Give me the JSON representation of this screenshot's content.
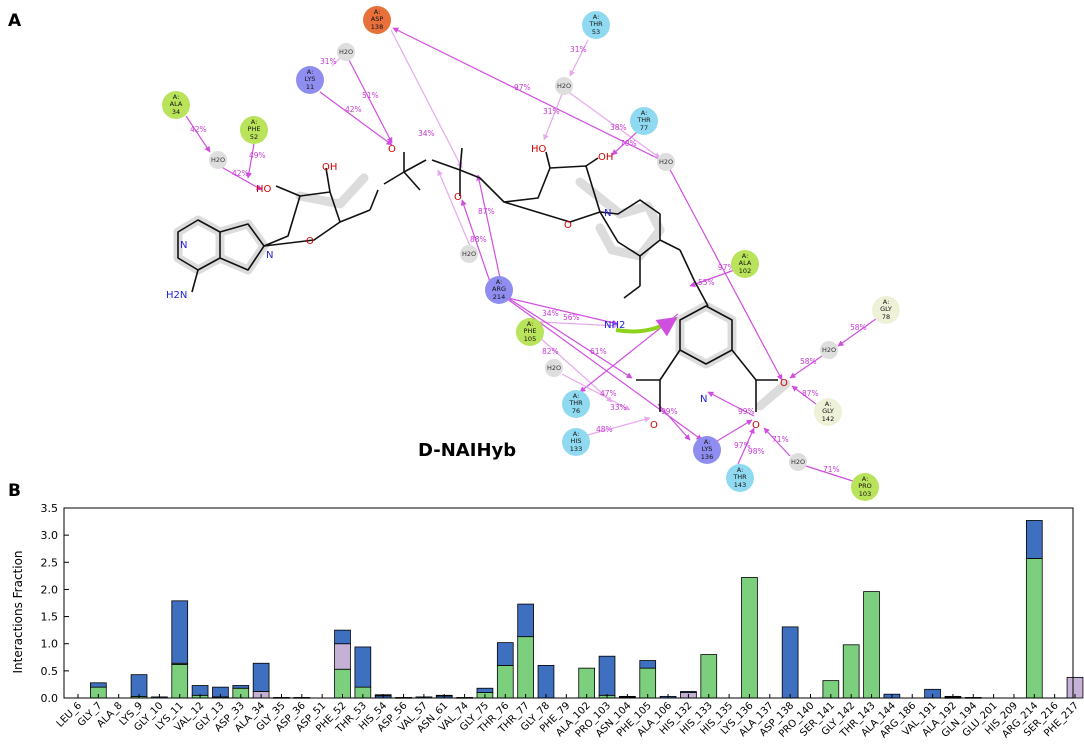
{
  "panel_labels": {
    "a": "A",
    "b": "B"
  },
  "ligand_name": "D-NAIHyb",
  "diagram": {
    "residues": [
      {
        "id": "asp138",
        "chain": "A:",
        "name": "ASP",
        "num": "138",
        "color": "#e8703a"
      },
      {
        "id": "thr53",
        "chain": "A:",
        "name": "THR",
        "num": "53",
        "color": "#8fdaf0"
      },
      {
        "id": "lys11",
        "chain": "A:",
        "name": "LYS",
        "num": "11",
        "color": "#8f8ef0"
      },
      {
        "id": "ala34",
        "chain": "A:",
        "name": "ALA",
        "num": "34",
        "color": "#b9e35a"
      },
      {
        "id": "phe52",
        "chain": "A:",
        "name": "PHE",
        "num": "52",
        "color": "#b9e35a"
      },
      {
        "id": "thr77",
        "chain": "A:",
        "name": "THR",
        "num": "77",
        "color": "#8fdaf0"
      },
      {
        "id": "ala102",
        "chain": "A:",
        "name": "ALA",
        "num": "102",
        "color": "#b9e35a"
      },
      {
        "id": "arg214",
        "chain": "A:",
        "name": "ARG",
        "num": "214",
        "color": "#8f8ef0"
      },
      {
        "id": "gly78",
        "chain": "A:",
        "name": "GLY",
        "num": "78",
        "color": "#eef1d8"
      },
      {
        "id": "phe105",
        "chain": "A:",
        "name": "PHE",
        "num": "105",
        "color": "#b9e35a"
      },
      {
        "id": "thr76",
        "chain": "A:",
        "name": "THR",
        "num": "76",
        "color": "#8fdaf0"
      },
      {
        "id": "gly142",
        "chain": "A:",
        "name": "GLY",
        "num": "142",
        "color": "#eef1d8"
      },
      {
        "id": "his133",
        "chain": "A:",
        "name": "HIS",
        "num": "133",
        "color": "#8fdaf0"
      },
      {
        "id": "lys136",
        "chain": "A:",
        "name": "LYS",
        "num": "136",
        "color": "#8f8ef0"
      },
      {
        "id": "thr143",
        "chain": "A:",
        "name": "THR",
        "num": "143",
        "color": "#8fdaf0"
      },
      {
        "id": "pro103",
        "chain": "A:",
        "name": "PRO",
        "num": "103",
        "color": "#b9e35a"
      }
    ],
    "water_label": "H2O",
    "percentages": [
      "31%",
      "51%",
      "42%",
      "42%",
      "49%",
      "42%",
      "34%",
      "97%",
      "31%",
      "31%",
      "38%",
      "70%",
      "87%",
      "88%",
      "55%",
      "97%",
      "34%",
      "56%",
      "82%",
      "61%",
      "58%",
      "58%",
      "87%",
      "47%",
      "33%",
      "48%",
      "99%",
      "99%",
      "97%",
      "98%",
      "71%",
      "71%"
    ],
    "atom_labels": {
      "oh1": "OH",
      "ho": "HO",
      "o_minus": "O",
      "o_ring": "O",
      "n": "N",
      "nh2": "NH2",
      "h2n": "H2N",
      "oh2": "OH",
      "ho2": "HO"
    }
  },
  "chart_data": {
    "type": "bar",
    "stacked": true,
    "ylabel": "Interactions Fraction",
    "ylim": [
      0,
      3.5
    ],
    "yticks": [
      "0.0",
      "0.5",
      "1.0",
      "1.5",
      "2.0",
      "2.5",
      "3.0",
      "3.5"
    ],
    "grid": false,
    "categories": [
      "LEU_6",
      "GLY_7",
      "ALA_8",
      "LYS_9",
      "GLY_10",
      "LYS_11",
      "VAL_12",
      "GLY_13",
      "ASP_33",
      "ALA_34",
      "GLY_35",
      "ASP_36",
      "ASP_51",
      "PHE_52",
      "THR_53",
      "HIS_54",
      "ASP_56",
      "VAL_57",
      "ASN_61",
      "VAL_74",
      "GLY_75",
      "THR_76",
      "THR_77",
      "GLY_78",
      "PHE_79",
      "ALA_102",
      "PRO_103",
      "ASN_104",
      "PHE_105",
      "ALA_106",
      "HIS_132",
      "HIS_133",
      "HIS_135",
      "LYS_136",
      "ALA_137",
      "ASP_138",
      "PRO_140",
      "SER_141",
      "GLY_142",
      "THR_143",
      "ALA_144",
      "ARG_186",
      "VAL_191",
      "ALA_192",
      "GLN_194",
      "GLU_201",
      "HIS_209",
      "ARG_214",
      "SER_216",
      "PHE_217"
    ],
    "series": [
      {
        "name": "",
        "color": "#7ccf7c",
        "values": [
          0,
          0.2,
          0,
          0.03,
          0,
          0.62,
          0.05,
          0.02,
          0.18,
          0,
          0,
          0,
          0,
          0.53,
          0.2,
          0,
          0,
          0,
          0,
          0,
          0.1,
          0.6,
          1.13,
          0,
          0,
          0.55,
          0.05,
          0,
          0.55,
          0,
          0,
          0.8,
          0,
          2.22,
          0,
          0,
          0,
          0.32,
          0.98,
          1.96,
          0,
          0,
          0,
          0,
          0,
          0,
          0,
          2.57,
          0,
          0
        ]
      },
      {
        "name": "",
        "color": "#c5b1d6",
        "values": [
          0,
          0,
          0,
          0,
          0,
          0.02,
          0,
          0,
          0,
          0.12,
          0,
          0,
          0,
          0.47,
          0,
          0,
          0,
          0,
          0,
          0,
          0,
          0,
          0,
          0,
          0,
          0,
          0,
          0,
          0,
          0,
          0.1,
          0,
          0,
          0,
          0,
          0,
          0,
          0,
          0,
          0,
          0,
          0,
          0,
          0,
          0,
          0,
          0,
          0,
          0,
          0.38
        ]
      },
      {
        "name": "",
        "color": "#3f6fbf",
        "values": [
          0,
          0.08,
          0,
          0.4,
          0.02,
          1.15,
          0.18,
          0.18,
          0.05,
          0.52,
          0.01,
          0.01,
          0,
          0.25,
          0.74,
          0.04,
          0.01,
          0.02,
          0.04,
          0.01,
          0.08,
          0.42,
          0.6,
          0.6,
          0,
          0,
          0.72,
          0.02,
          0.14,
          0.03,
          0.02,
          0,
          0,
          0,
          0,
          1.31,
          0,
          0,
          0,
          0,
          0.07,
          0,
          0.16,
          0.01,
          0.01,
          0,
          0,
          0.7,
          0,
          0
        ]
      },
      {
        "name": "",
        "color": "#222222",
        "values": [
          0,
          0,
          0,
          0,
          0,
          0,
          0,
          0,
          0,
          0,
          0,
          0,
          0,
          0,
          0,
          0.02,
          0,
          0,
          0.01,
          0,
          0,
          0,
          0,
          0,
          0,
          0,
          0,
          0.01,
          0,
          0,
          0,
          0,
          0,
          0,
          0,
          0,
          0,
          0,
          0,
          0,
          0,
          0,
          0,
          0.02,
          0,
          0,
          0,
          0,
          0,
          0
        ]
      }
    ]
  }
}
